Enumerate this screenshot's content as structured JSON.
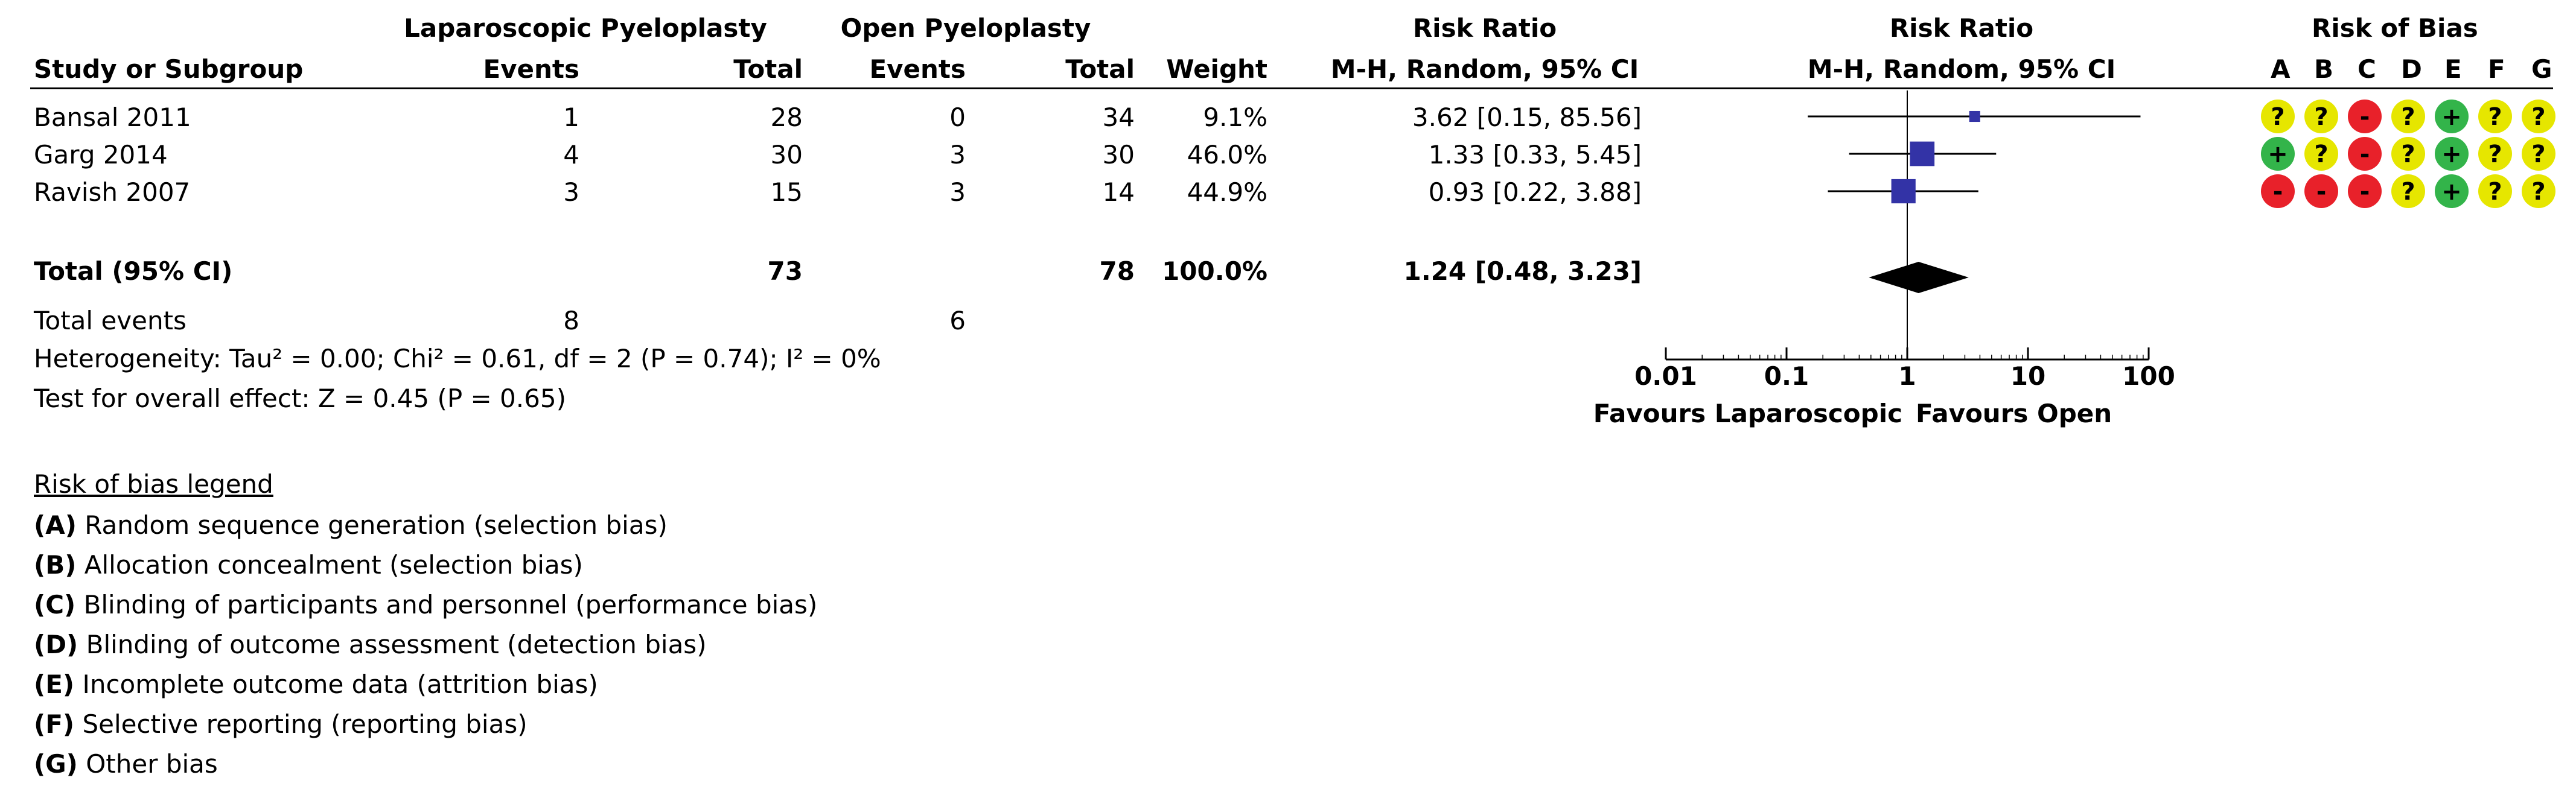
{
  "chart_data": {
    "type": "forest",
    "headers": {
      "group1": "Laparoscopic Pyeloplasty",
      "group2": "Open Pyeloplasty",
      "rr_top": "Risk Ratio",
      "rr_sub": "M-H, Random, 95% CI",
      "plot_top": "Risk Ratio",
      "plot_sub": "M-H, Random, 95% CI",
      "bias_top": "Risk of Bias",
      "study": "Study or Subgroup",
      "events": "Events",
      "total": "Total",
      "weight": "Weight"
    },
    "studies": [
      {
        "name": "Bansal 2011",
        "e1": "1",
        "n1": "28",
        "e2": "0",
        "n2": "34",
        "weight": "9.1%",
        "ci_text": "3.62 [0.15, 85.56]",
        "rr": 3.62,
        "lo": 0.15,
        "hi": 85.56,
        "w": 9.1,
        "bias": [
          "?",
          "?",
          "-",
          "?",
          "+",
          "?",
          "?"
        ]
      },
      {
        "name": "Garg 2014",
        "e1": "4",
        "n1": "30",
        "e2": "3",
        "n2": "30",
        "weight": "46.0%",
        "ci_text": "1.33 [0.33, 5.45]",
        "rr": 1.33,
        "lo": 0.33,
        "hi": 5.45,
        "w": 46.0,
        "bias": [
          "+",
          "?",
          "-",
          "?",
          "+",
          "?",
          "?"
        ]
      },
      {
        "name": "Ravish 2007",
        "e1": "3",
        "n1": "15",
        "e2": "3",
        "n2": "14",
        "weight": "44.9%",
        "ci_text": "0.93 [0.22, 3.88]",
        "rr": 0.93,
        "lo": 0.22,
        "hi": 3.88,
        "w": 44.9,
        "bias": [
          "-",
          "-",
          "-",
          "?",
          "+",
          "?",
          "?"
        ]
      }
    ],
    "total": {
      "label": "Total (95% CI)",
      "n1": "73",
      "n2": "78",
      "weight": "100.0%",
      "ci_text": "1.24 [0.48, 3.23]",
      "rr": 1.24,
      "lo": 0.48,
      "hi": 3.23
    },
    "total_events": {
      "label": "Total events",
      "e1": "8",
      "e2": "6"
    },
    "heterogeneity": "Heterogeneity: Tau² = 0.00; Chi² = 0.61, df = 2 (P = 0.74); I² = 0%",
    "overall_effect": "Test for overall effect: Z = 0.45 (P = 0.65)",
    "xaxis": {
      "scale": "log",
      "min": 0.01,
      "max": 100,
      "ticks": [
        0.01,
        0.1,
        1,
        10,
        100
      ],
      "tick_labels": [
        "0.01",
        "0.1",
        "1",
        "10",
        "100"
      ]
    },
    "favours_left": "Favours Laparoscopic",
    "favours_right": "Favours Open",
    "bias_columns": [
      "A",
      "B",
      "C",
      "D",
      "E",
      "F",
      "G"
    ],
    "bias_colors": {
      "low": "#33b44a",
      "unclear": "#e6e600",
      "high": "#e8212a"
    },
    "marker_color": "#3333a6",
    "legend_title": "Risk of bias legend",
    "legend_items": [
      {
        "key": "(A)",
        "text": "Random sequence generation (selection bias)"
      },
      {
        "key": "(B)",
        "text": "Allocation concealment (selection bias)"
      },
      {
        "key": "(C)",
        "text": "Blinding of participants and personnel (performance bias)"
      },
      {
        "key": "(D)",
        "text": "Blinding of outcome assessment (detection bias)"
      },
      {
        "key": "(E)",
        "text": "Incomplete outcome data (attrition bias)"
      },
      {
        "key": "(F)",
        "text": "Selective reporting (reporting bias)"
      },
      {
        "key": "(G)",
        "text": "Other bias"
      }
    ]
  }
}
